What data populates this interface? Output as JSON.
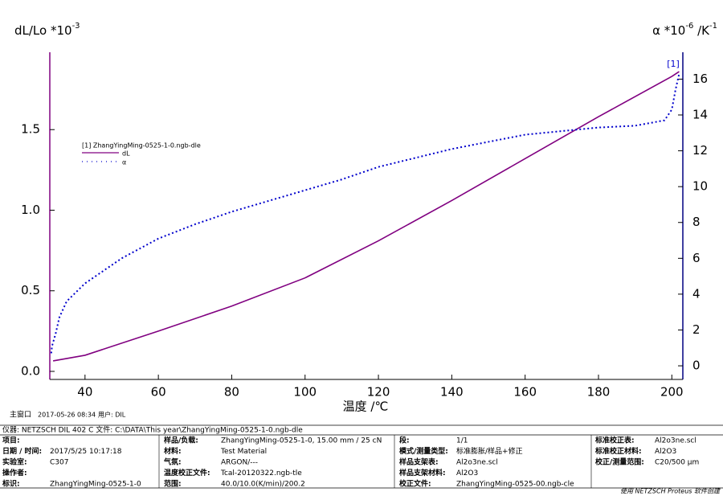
{
  "chart_data": {
    "type": "line",
    "y_label": {
      "base": "dL/Lo *10",
      "exp": "-3"
    },
    "y2_label": {
      "base": "α *10",
      "exp": "-6",
      "unit": " /K",
      "unit_exp": "-1"
    },
    "x_label": "温度 /℃",
    "legend_title": "[1] ZhangYingMing-0525-1-0.ngb-dle",
    "annotation": "[1]",
    "xlim": [
      30.4,
      203
    ],
    "xticks": [
      40,
      60,
      80,
      100,
      120,
      140,
      160,
      180,
      200
    ],
    "ylim": [
      -0.05,
      1.98
    ],
    "yticks": [
      {
        "value": 0,
        "label": "0.0"
      },
      0.5,
      {
        "value": 1,
        "label": "1.0"
      },
      1.5
    ],
    "y2lim": [
      -0.76,
      17.5
    ],
    "y2ticks": [
      0,
      2,
      4,
      6,
      8,
      10,
      12,
      14,
      16
    ],
    "series": [
      {
        "name": "dL",
        "color": "#800080",
        "style": "solid",
        "x": [
          31.3,
          40,
          60,
          80,
          100,
          120,
          140,
          160,
          180,
          200,
          202
        ],
        "values": [
          0.065,
          0.1,
          0.25,
          0.405,
          0.58,
          0.81,
          1.06,
          1.32,
          1.58,
          1.83,
          1.86
        ]
      },
      {
        "name": "α",
        "color": "#0000cc",
        "style": "dotted",
        "axis": "y2",
        "x": [
          30.8,
          31,
          32,
          33,
          35,
          40,
          50,
          60,
          70,
          80,
          90,
          100,
          110,
          120,
          130,
          140,
          150,
          160,
          170,
          180,
          190,
          198,
          200,
          201,
          202
        ],
        "values": [
          0.7,
          1.1,
          1.8,
          2.7,
          3.6,
          4.6,
          6.0,
          7.1,
          7.9,
          8.6,
          9.2,
          9.8,
          10.4,
          11.1,
          11.6,
          12.1,
          12.5,
          12.9,
          13.1,
          13.3,
          13.4,
          13.7,
          14.3,
          15.4,
          16.3
        ]
      }
    ]
  },
  "footer": {
    "window": "主窗口",
    "datetime": "2017-05-26 08:34",
    "user": "用户: DIL",
    "credit": "使用 NETZSCH Proteus 软件创建"
  },
  "info_table": {
    "instrument": "仪器: NETZSCH DIL 402 C  文件: C:\\DATA\\This year\\ZhangYingMing-0525-1-0.ngb-dle",
    "rows": [
      [
        {
          "label": "项目:",
          "value": null
        },
        {
          "label": "样品/负载:",
          "value": "ZhangYingMing-0525-1-0, 15.00 mm / 25 cN"
        },
        {
          "label": "段:",
          "value": "1/1"
        },
        {
          "label": "标准校正表:",
          "value": "Al2o3ne.scl"
        }
      ],
      [
        {
          "label": "日期 / 时间:",
          "value": "2017/5/25 10:17:18"
        },
        {
          "label": "材料:",
          "value": "Test Material"
        },
        {
          "label": "模式/测量类型:",
          "value": "标准膨胀/样品+修正"
        },
        {
          "label": "标准校正材料:",
          "value": "Al2O3"
        }
      ],
      [
        {
          "label": "实验室:",
          "value": "C307"
        },
        {
          "label": "气氛:",
          "value": "ARGON/---"
        },
        {
          "label": "样品支架表:",
          "value": "Al2o3ne.scl"
        },
        {
          "label": "校正/测量范围:",
          "value": "C20/500 µm"
        }
      ],
      [
        {
          "label": "操作者:",
          "value": null
        },
        {
          "label": "温度校正文件:",
          "value": "Tcal-20120322.ngb-tle"
        },
        {
          "label": "样品支架材料:",
          "value": "Al2O3"
        },
        null
      ],
      [
        {
          "label": "标识:",
          "value": "ZhangYingMing-0525-1-0"
        },
        {
          "label": "范围:",
          "value": "40.0/10.0(K/min)/200.2"
        },
        {
          "label": "校正文件:",
          "value": "ZhangYingMing-0525-00.ngb-cle"
        },
        null
      ]
    ]
  }
}
